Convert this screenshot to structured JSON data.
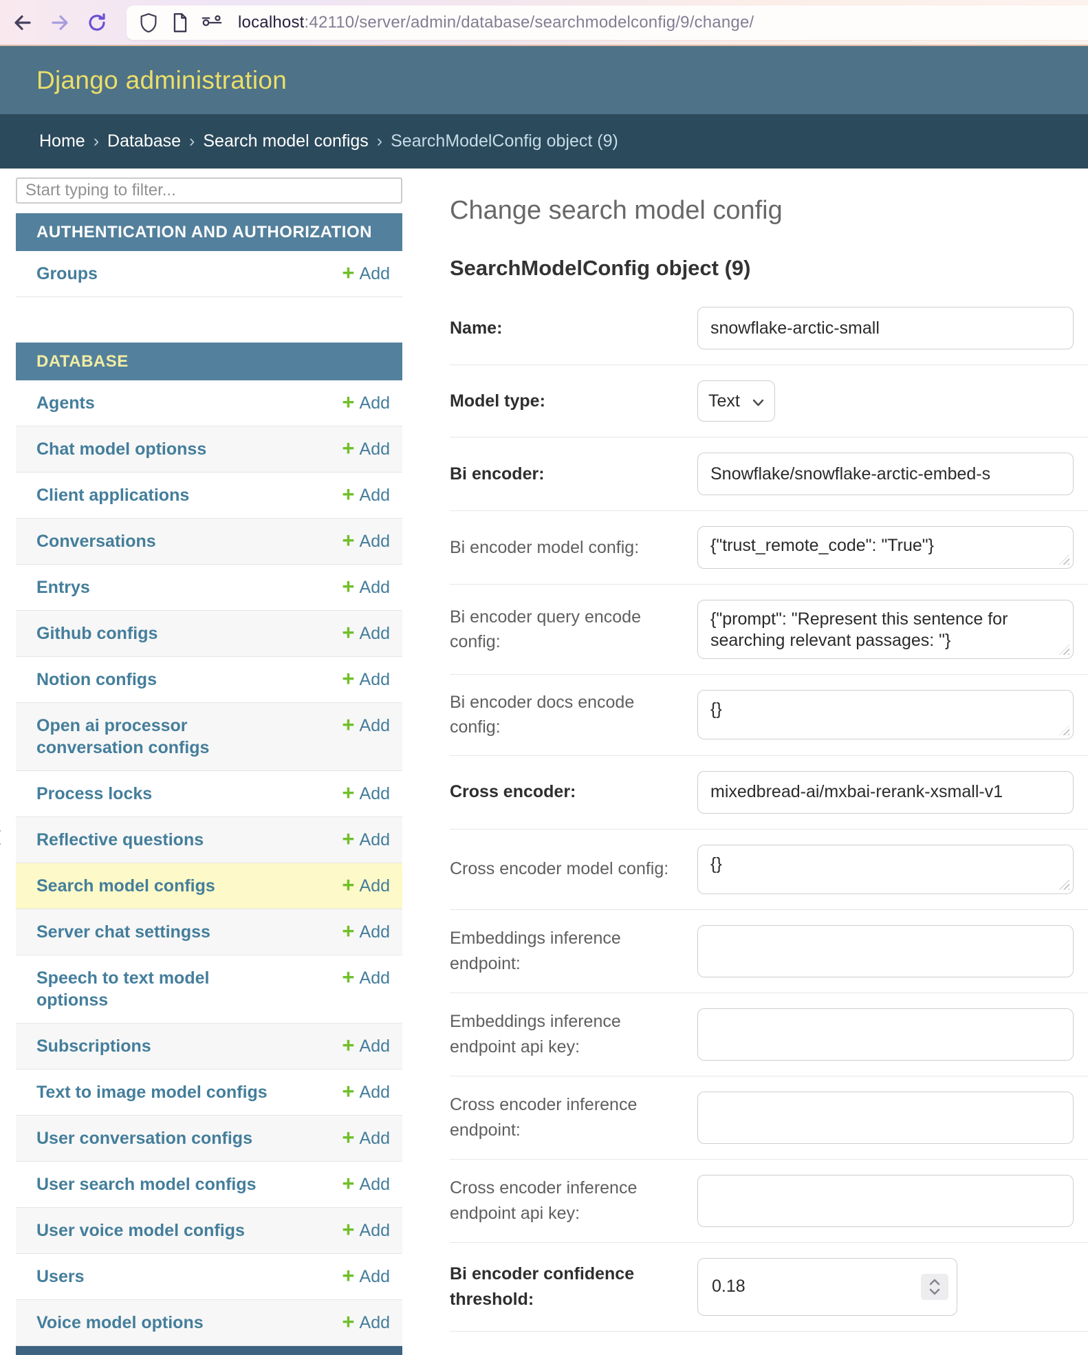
{
  "browser": {
    "url_host": "localhost",
    "url_rest": ":42110/server/admin/database/searchmodelconfig/9/change/"
  },
  "header": {
    "title": "Django administration"
  },
  "breadcrumbs": {
    "links": [
      "Home",
      "Database",
      "Search model configs"
    ],
    "separator": "›",
    "current": "SearchModelConfig object (9)"
  },
  "sidebar": {
    "filter_placeholder": "Start typing to filter...",
    "toggle_glyph": "‹",
    "add_label": "Add",
    "sections": [
      {
        "title": "AUTHENTICATION AND AUTHORIZATION",
        "current_app": false,
        "items": [
          {
            "label": "Groups"
          }
        ]
      },
      {
        "title": "DATABASE",
        "current_app": true,
        "items": [
          {
            "label": "Agents"
          },
          {
            "label": "Chat model optionss"
          },
          {
            "label": "Client applications"
          },
          {
            "label": "Conversations"
          },
          {
            "label": "Entrys"
          },
          {
            "label": "Github configs"
          },
          {
            "label": "Notion configs"
          },
          {
            "label": "Open ai processor conversation configs"
          },
          {
            "label": "Process locks"
          },
          {
            "label": "Reflective questions"
          },
          {
            "label": "Search model configs",
            "selected": true
          },
          {
            "label": "Server chat settingss"
          },
          {
            "label": "Speech to text model optionss"
          },
          {
            "label": "Subscriptions"
          },
          {
            "label": "Text to image model configs"
          },
          {
            "label": "User conversation configs"
          },
          {
            "label": "User search model configs"
          },
          {
            "label": "User voice model configs"
          },
          {
            "label": "Users"
          },
          {
            "label": "Voice model options"
          }
        ]
      }
    ]
  },
  "main": {
    "page_title": "Change search model config",
    "object_title": "SearchModelConfig object (9)",
    "fields": [
      {
        "label": "Name:",
        "required": true,
        "kind": "text",
        "value": "snowflake-arctic-small"
      },
      {
        "label": "Model type:",
        "required": true,
        "kind": "select",
        "value": "Text"
      },
      {
        "label": "Bi encoder:",
        "required": true,
        "kind": "text",
        "value": "Snowflake/snowflake-arctic-embed-s"
      },
      {
        "label": "Bi encoder model config:",
        "required": false,
        "kind": "textarea",
        "size": "sm",
        "value": "{\"trust_remote_code\": \"True\"}"
      },
      {
        "label": "Bi encoder query encode config:",
        "required": false,
        "kind": "textarea",
        "size": "lg",
        "value": "{\"prompt\": \"Represent this sentence for searching relevant passages: \"}"
      },
      {
        "label": "Bi encoder docs encode config:",
        "required": false,
        "kind": "textarea",
        "size": "md",
        "value": "{}"
      },
      {
        "label": "Cross encoder:",
        "required": true,
        "kind": "text",
        "value": "mixedbread-ai/mxbai-rerank-xsmall-v1"
      },
      {
        "label": "Cross encoder model config:",
        "required": false,
        "kind": "textarea",
        "size": "md",
        "value": "{}"
      },
      {
        "label": "Embeddings inference endpoint:",
        "required": false,
        "kind": "blank",
        "value": ""
      },
      {
        "label": "Embeddings inference endpoint api key:",
        "required": false,
        "kind": "blank",
        "value": ""
      },
      {
        "label": "Cross encoder inference endpoint:",
        "required": false,
        "kind": "blank",
        "value": ""
      },
      {
        "label": "Cross encoder inference endpoint api key:",
        "required": false,
        "kind": "blank",
        "value": ""
      },
      {
        "label": "Bi encoder confidence threshold:",
        "required": true,
        "kind": "number",
        "value": "0.18"
      }
    ]
  },
  "colors": {
    "header_bg": "#4e7287",
    "header_text": "#ecdf69",
    "breadcrumb_bg": "#2b4a5c",
    "section_caption_bg": "#53809c",
    "link_blue": "#447e9b",
    "add_green": "#70bf2b",
    "selected_row_yellow": "#fdf9c8"
  }
}
